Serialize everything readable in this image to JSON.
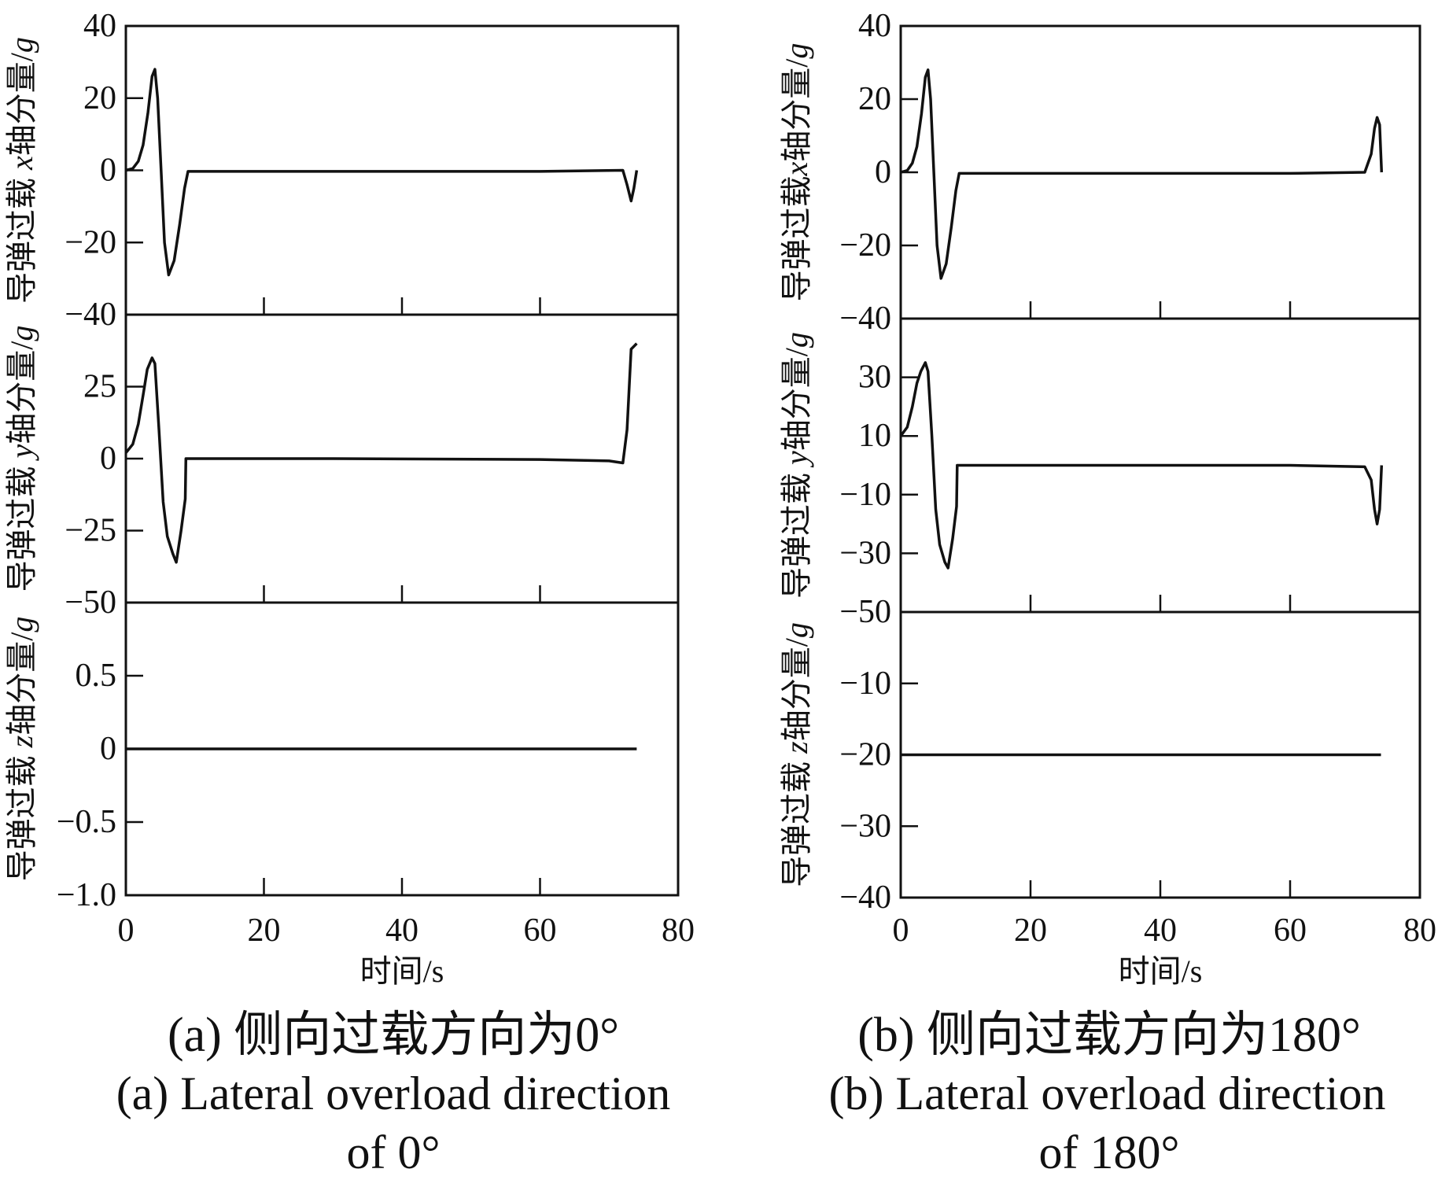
{
  "chart_data": [
    {
      "id": "a",
      "type": "line",
      "xlabel": "时间/s",
      "xlim": [
        0,
        80
      ],
      "xticks": [
        "0",
        "20",
        "40",
        "60",
        "80"
      ],
      "caption_zh": "(a) 侧向过载方向为0°",
      "caption_en_line1": "(a) Lateral overload direction",
      "caption_en_line2": "of  0°",
      "panels": [
        {
          "ylabel_prefix": "导弹过载 ",
          "axis_var": "x",
          "ylabel_suffix": "轴分量/",
          "unit_var": "g",
          "ylim": [
            -40,
            40
          ],
          "yticks": [
            {
              "v": 40,
              "t": "40"
            },
            {
              "v": 20,
              "t": "20"
            },
            {
              "v": 0,
              "t": "0"
            },
            {
              "v": -20,
              "t": "−20"
            }
          ],
          "bottom_tick_label": "−40",
          "series": [
            {
              "name": "x",
              "x": [
                0,
                1,
                1.8,
                2.5,
                3.2,
                3.8,
                4.2,
                4.6,
                5.1,
                5.6,
                6.2,
                7,
                7.8,
                8.5,
                9,
                30,
                60,
                72,
                72.6,
                73.2,
                73.6,
                74
              ],
              "y": [
                0,
                0.5,
                2.5,
                7,
                16,
                26,
                28,
                20,
                0,
                -20,
                -29,
                -25,
                -15,
                -5,
                -0.3,
                -0.3,
                -0.3,
                0,
                -4,
                -8.5,
                -5,
                0
              ]
            }
          ]
        },
        {
          "ylabel_prefix": "导弹过载 ",
          "axis_var": "y",
          "ylabel_suffix": "轴分量/",
          "unit_var": "g",
          "ylim": [
            -50,
            50
          ],
          "yticks": [
            {
              "v": 25,
              "t": "25"
            },
            {
              "v": 0,
              "t": "0"
            },
            {
              "v": -25,
              "t": "−25"
            }
          ],
          "bottom_tick_label": "−50",
          "series": [
            {
              "name": "y",
              "x": [
                0,
                1,
                1.8,
                2.5,
                3.1,
                3.8,
                4.2,
                4.8,
                5.4,
                6,
                6.8,
                7.3,
                8,
                8.6,
                8.7,
                9,
                30,
                60,
                70,
                72,
                72.6,
                73.2,
                73.6,
                74
              ],
              "y": [
                2,
                5,
                12,
                22,
                31,
                35,
                33,
                10,
                -15,
                -27,
                -33,
                -36,
                -25,
                -14,
                0,
                0,
                0,
                -0.3,
                -0.8,
                -1.5,
                10,
                38,
                39,
                40
              ]
            }
          ]
        },
        {
          "ylabel_prefix": "导弹过载 ",
          "axis_var": "z",
          "ylabel_suffix": "轴分量/",
          "unit_var": "g",
          "ylim": [
            -1.0,
            1.0
          ],
          "yticks": [
            {
              "v": 0.5,
              "t": "0.5"
            },
            {
              "v": 0,
              "t": "0"
            },
            {
              "v": -0.5,
              "t": "−0.5"
            },
            {
              "v": -1.0,
              "t": "−1.0"
            }
          ],
          "series": [
            {
              "name": "z",
              "x": [
                0,
                74
              ],
              "y": [
                0,
                0
              ]
            }
          ]
        }
      ]
    },
    {
      "id": "b",
      "type": "line",
      "xlabel": "时间/s",
      "xlim": [
        0,
        80
      ],
      "xticks": [
        "0",
        "20",
        "40",
        "60",
        "80"
      ],
      "caption_zh": "(b) 侧向过载方向为180°",
      "caption_en_line1": "(b) Lateral overload direction",
      "caption_en_line2": "of 180°",
      "panels": [
        {
          "ylabel_prefix": "导弹过载",
          "axis_var": "x",
          "ylabel_suffix": "轴分量/",
          "unit_var": "g",
          "ylim": [
            -40,
            40
          ],
          "yticks": [
            {
              "v": 40,
              "t": "40"
            },
            {
              "v": 20,
              "t": "20"
            },
            {
              "v": 0,
              "t": "0"
            },
            {
              "v": -20,
              "t": "−20"
            }
          ],
          "bottom_tick_label": "−40",
          "series": [
            {
              "name": "x",
              "x": [
                0,
                1,
                1.8,
                2.5,
                3.2,
                3.8,
                4.2,
                4.6,
                5.1,
                5.6,
                6.2,
                7,
                7.8,
                8.5,
                9,
                30,
                60,
                71.5,
                72.5,
                73,
                73.4,
                73.8,
                74.1
              ],
              "y": [
                0,
                0.5,
                2.5,
                7,
                16,
                26,
                28,
                20,
                0,
                -20,
                -29,
                -25,
                -15,
                -5,
                -0.3,
                -0.3,
                -0.3,
                0,
                5,
                12,
                15,
                13,
                0
              ]
            }
          ]
        },
        {
          "ylabel_prefix": "导弹过载 ",
          "axis_var": "y",
          "ylabel_suffix": "轴分量/",
          "unit_var": "g",
          "ylim": [
            -50,
            50
          ],
          "yticks": [
            {
              "v": 30,
              "t": "30"
            },
            {
              "v": 10,
              "t": "10"
            },
            {
              "v": -10,
              "t": "−10"
            },
            {
              "v": -30,
              "t": "−30"
            }
          ],
          "bottom_tick_label": "−50",
          "series": [
            {
              "name": "y",
              "x": [
                0,
                1,
                1.8,
                2.5,
                3.1,
                3.8,
                4.2,
                4.8,
                5.4,
                6,
                6.8,
                7.3,
                8,
                8.6,
                8.7,
                9,
                30,
                60,
                71.5,
                72.5,
                73,
                73.4,
                73.8,
                74.1
              ],
              "y": [
                10,
                13,
                20,
                28,
                32,
                35,
                32,
                10,
                -15,
                -27,
                -33,
                -35,
                -25,
                -14,
                0,
                0,
                0,
                0,
                -0.5,
                -5,
                -15,
                -20,
                -15,
                0
              ]
            }
          ]
        },
        {
          "ylabel_prefix": "导弹过载 ",
          "axis_var": "z",
          "ylabel_suffix": "轴分量/",
          "unit_var": "g",
          "ylim": [
            -40,
            0
          ],
          "yticks": [
            {
              "v": -10,
              "t": "−10"
            },
            {
              "v": -20,
              "t": "−20"
            },
            {
              "v": -30,
              "t": "−30"
            },
            {
              "v": -40,
              "t": "−40"
            }
          ],
          "series": [
            {
              "name": "z",
              "x": [
                0,
                74
              ],
              "y": [
                -20,
                -20
              ]
            }
          ]
        }
      ]
    }
  ]
}
